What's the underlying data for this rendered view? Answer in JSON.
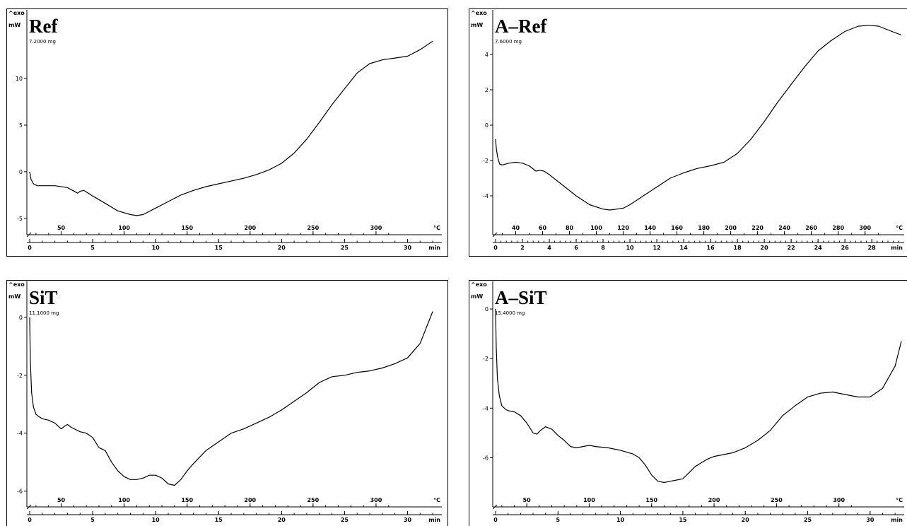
{
  "panels": [
    {
      "sample_name": "Ref",
      "mass": "7.2000 mg",
      "exo_label": "^exo",
      "y_unit": "mW",
      "temp_unit": "°C",
      "time_unit": "min"
    },
    {
      "sample_name": "A–Ref",
      "mass": "7.6000 mg",
      "exo_label": "^exo",
      "y_unit": "mW",
      "temp_unit": "°C",
      "time_unit": "min"
    },
    {
      "sample_name": "SiT",
      "mass": "11.1000 mg",
      "exo_label": "^exo",
      "y_unit": "mW",
      "temp_unit": "°C",
      "time_unit": "min"
    },
    {
      "sample_name": "A–SiT",
      "mass": "15.4000 mg",
      "exo_label": "^exo",
      "y_unit": "mW",
      "temp_unit": "°C",
      "time_unit": "min"
    }
  ],
  "chart_data": [
    {
      "type": "line",
      "title": "Ref",
      "xlabel": "min",
      "ylabel": "mW",
      "xlim": [
        0,
        32.5
      ],
      "ylim": [
        -6,
        16
      ],
      "x_ticks": [
        0,
        5,
        10,
        15,
        20,
        25,
        30
      ],
      "y_ticks": [
        -5,
        0,
        5,
        10
      ],
      "temp_ticks": [
        50,
        100,
        150,
        200,
        250,
        300
      ],
      "temp_axis_unit": "°C",
      "series": [
        {
          "x": [
            0,
            0.1,
            0.3,
            0.6,
            1,
            2,
            3,
            3.8,
            4,
            4.3,
            5,
            6,
            7,
            8,
            8.5,
            9,
            10,
            11,
            12,
            13,
            14,
            15,
            16,
            17,
            18,
            19,
            20,
            21,
            22,
            23,
            24,
            25,
            26,
            27,
            28,
            29,
            30,
            31,
            32
          ],
          "y": [
            0,
            -0.8,
            -1.3,
            -1.5,
            -1.5,
            -1.5,
            -1.7,
            -2.3,
            -2.1,
            -2.0,
            -2.6,
            -3.4,
            -4.2,
            -4.6,
            -4.7,
            -4.6,
            -3.9,
            -3.2,
            -2.5,
            -2.0,
            -1.6,
            -1.3,
            -1.0,
            -0.7,
            -0.3,
            0.2,
            0.9,
            2.0,
            3.5,
            5.3,
            7.2,
            8.9,
            10.6,
            11.6,
            12.0,
            12.2,
            12.4,
            13.1,
            14.0
          ]
        }
      ]
    },
    {
      "type": "line",
      "title": "A–Ref",
      "xlabel": "min",
      "ylabel": "mW",
      "xlim": [
        0,
        30.2
      ],
      "ylim": [
        -5.8,
        5.8
      ],
      "x_ticks": [
        0,
        2,
        4,
        6,
        8,
        10,
        12,
        14,
        16,
        18,
        20,
        22,
        24,
        26,
        28
      ],
      "y_ticks": [
        -4,
        -2,
        0,
        2,
        4
      ],
      "temp_ticks": [
        40,
        60,
        80,
        100,
        120,
        140,
        160,
        180,
        200,
        220,
        240,
        260,
        280,
        300
      ],
      "temp_axis_unit": "°C",
      "series": [
        {
          "x": [
            0,
            0.05,
            0.15,
            0.3,
            0.5,
            1,
            1.5,
            2,
            2.5,
            3,
            3.3,
            3.6,
            4,
            5,
            6,
            7,
            8,
            8.5,
            9,
            9.5,
            10,
            11,
            12,
            13,
            14,
            15,
            16,
            17,
            18,
            19,
            20,
            21,
            22,
            23,
            24,
            25,
            26,
            27,
            27.8,
            28.5,
            29.5,
            30.2
          ],
          "y": [
            -0.8,
            -1.3,
            -1.8,
            -2.2,
            -2.25,
            -2.15,
            -2.1,
            -2.15,
            -2.3,
            -2.6,
            -2.55,
            -2.6,
            -2.8,
            -3.4,
            -4.0,
            -4.5,
            -4.75,
            -4.8,
            -4.75,
            -4.7,
            -4.5,
            -4.0,
            -3.5,
            -3.0,
            -2.7,
            -2.45,
            -2.3,
            -2.1,
            -1.6,
            -0.8,
            0.2,
            1.3,
            2.3,
            3.3,
            4.2,
            4.8,
            5.3,
            5.6,
            5.65,
            5.6,
            5.3,
            5.1
          ]
        }
      ]
    },
    {
      "type": "line",
      "title": "SiT",
      "xlabel": "min",
      "ylabel": "mW",
      "xlim": [
        0,
        32.5
      ],
      "ylim": [
        -6.3,
        0.8
      ],
      "x_ticks": [
        0,
        5,
        10,
        15,
        20,
        25,
        30
      ],
      "y_ticks": [
        -6,
        -4,
        -2,
        0
      ],
      "temp_ticks": [
        50,
        100,
        150,
        200,
        250,
        300
      ],
      "temp_axis_unit": "°C",
      "series": [
        {
          "x": [
            0,
            0.05,
            0.15,
            0.3,
            0.5,
            0.8,
            1,
            1.5,
            2,
            2.5,
            2.8,
            3,
            3.3,
            4,
            4.5,
            5,
            5.5,
            6,
            6.5,
            7,
            7.5,
            8,
            8.5,
            9,
            9.5,
            10,
            10.5,
            11,
            11.5,
            12,
            12.5,
            13,
            14,
            15,
            16,
            17,
            18,
            19,
            20,
            21,
            22,
            23,
            24,
            25,
            26,
            27,
            28,
            29,
            30,
            31,
            32
          ],
          "y": [
            0,
            -1.5,
            -2.6,
            -3.1,
            -3.35,
            -3.45,
            -3.5,
            -3.55,
            -3.65,
            -3.85,
            -3.75,
            -3.7,
            -3.8,
            -3.95,
            -4.0,
            -4.15,
            -4.5,
            -4.6,
            -5.0,
            -5.3,
            -5.5,
            -5.6,
            -5.6,
            -5.55,
            -5.45,
            -5.45,
            -5.55,
            -5.75,
            -5.8,
            -5.6,
            -5.3,
            -5.05,
            -4.6,
            -4.3,
            -4.0,
            -3.85,
            -3.65,
            -3.45,
            -3.2,
            -2.9,
            -2.6,
            -2.25,
            -2.05,
            -2.0,
            -1.9,
            -1.85,
            -1.75,
            -1.6,
            -1.4,
            -0.9,
            0.2
          ]
        }
      ]
    },
    {
      "type": "line",
      "title": "A–SiT",
      "xlabel": "min",
      "ylabel": "mW",
      "xlim": [
        0,
        32.5
      ],
      "ylim": [
        -7.7,
        0.6
      ],
      "x_ticks": [
        0,
        5,
        10,
        15,
        20,
        25,
        30
      ],
      "y_ticks": [
        -6,
        -4,
        -2,
        0
      ],
      "temp_ticks": [
        50,
        100,
        150,
        200,
        250,
        300
      ],
      "temp_axis_unit": "°C",
      "series": [
        {
          "x": [
            0,
            0.05,
            0.15,
            0.3,
            0.5,
            0.8,
            1,
            1.5,
            2,
            2.5,
            3,
            3.3,
            3.6,
            4,
            4.5,
            5,
            5.5,
            6,
            6.5,
            7,
            7.5,
            8,
            9,
            10,
            11,
            11.5,
            12,
            12.5,
            13,
            13.5,
            14,
            14.5,
            15,
            15.5,
            16,
            16.5,
            17,
            17.5,
            18,
            19,
            20,
            21,
            22,
            23,
            24,
            25,
            26,
            27,
            28,
            29,
            30,
            31,
            32,
            32.5
          ],
          "y": [
            0,
            -1.5,
            -2.8,
            -3.5,
            -3.9,
            -4.05,
            -4.1,
            -4.15,
            -4.3,
            -4.6,
            -5.0,
            -5.05,
            -4.9,
            -4.75,
            -4.85,
            -5.1,
            -5.3,
            -5.55,
            -5.6,
            -5.55,
            -5.5,
            -5.55,
            -5.6,
            -5.7,
            -5.85,
            -6.0,
            -6.3,
            -6.7,
            -6.95,
            -7.0,
            -6.95,
            -6.9,
            -6.85,
            -6.6,
            -6.35,
            -6.2,
            -6.05,
            -5.95,
            -5.9,
            -5.8,
            -5.6,
            -5.3,
            -4.9,
            -4.3,
            -3.9,
            -3.55,
            -3.4,
            -3.35,
            -3.45,
            -3.55,
            -3.55,
            -3.2,
            -2.3,
            -1.3
          ]
        }
      ]
    }
  ]
}
